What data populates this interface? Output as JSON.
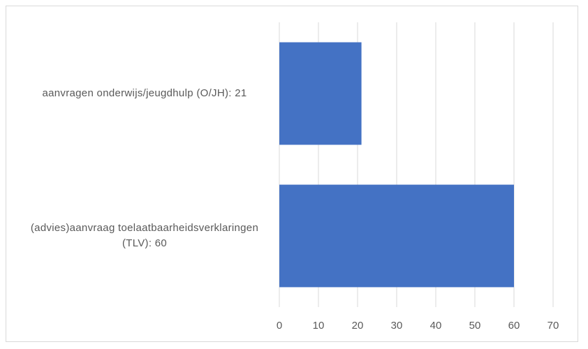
{
  "chart_data": {
    "type": "hbar",
    "categories": [
      "aanvragen onderwijs/jeugdhulp (O/JH): 21",
      "(advies)aanvraag toelaatbaarheidsverklaringen (TLV): 60"
    ],
    "values": [
      21,
      60
    ],
    "color": "#4472c4",
    "xlim": [
      0,
      70
    ],
    "xticks": [
      0,
      10,
      20,
      30,
      40,
      50,
      60,
      70
    ],
    "grid": true
  }
}
